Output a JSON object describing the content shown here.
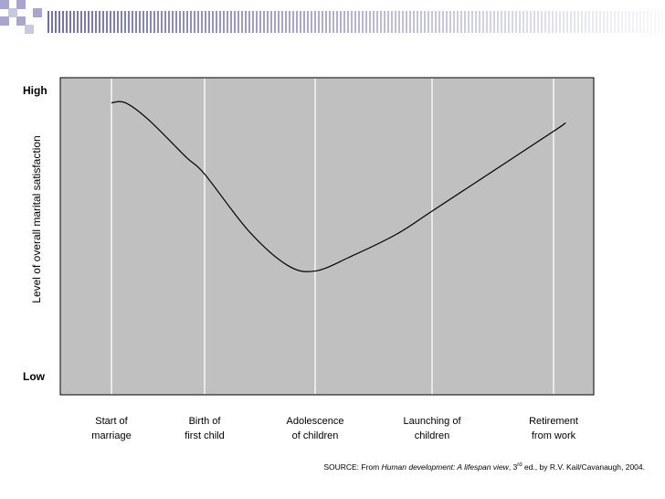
{
  "chart_data": {
    "type": "line",
    "title": "",
    "xlabel": "",
    "ylabel": "Level of overall marital satisfaction",
    "y_high_label": "High",
    "y_low_label": "Low",
    "ylim": [
      0,
      1
    ],
    "grid": "vertical",
    "categories": [
      {
        "line1": "Start of",
        "line2": "marriage"
      },
      {
        "line1": "Birth of",
        "line2": "first child"
      },
      {
        "line1": "Adolescence",
        "line2": "of children"
      },
      {
        "line1": "Launching of",
        "line2": "children"
      },
      {
        "line1": "Retirement",
        "line2": "from work"
      }
    ],
    "series": [
      {
        "color": "#000000",
        "points": [
          {
            "x": 0,
            "y": 0.96
          },
          {
            "x": 0.15,
            "y": 0.96
          },
          {
            "x": 0.4,
            "y": 0.9
          },
          {
            "x": 0.8,
            "y": 0.77
          },
          {
            "x": 1,
            "y": 0.71
          },
          {
            "x": 1.4,
            "y": 0.51
          },
          {
            "x": 1.75,
            "y": 0.39
          },
          {
            "x": 2,
            "y": 0.37
          },
          {
            "x": 2.3,
            "y": 0.42
          },
          {
            "x": 2.7,
            "y": 0.5
          },
          {
            "x": 3,
            "y": 0.58
          },
          {
            "x": 3.5,
            "y": 0.72
          },
          {
            "x": 4,
            "y": 0.86
          },
          {
            "x": 4.1,
            "y": 0.89
          }
        ]
      }
    ]
  },
  "source": {
    "prefix": "SOURCE: From ",
    "book": "Human development: A lifespan view",
    "edition_pre": ", 3",
    "edition_sup": "rd",
    "suffix": " ed., by R.V. Kail/Cavanaugh, 2004."
  },
  "colors": {
    "plot_bg": "#c0c0c0",
    "gridline": "#ffffff",
    "header_stripe": "#7b7bc4"
  }
}
